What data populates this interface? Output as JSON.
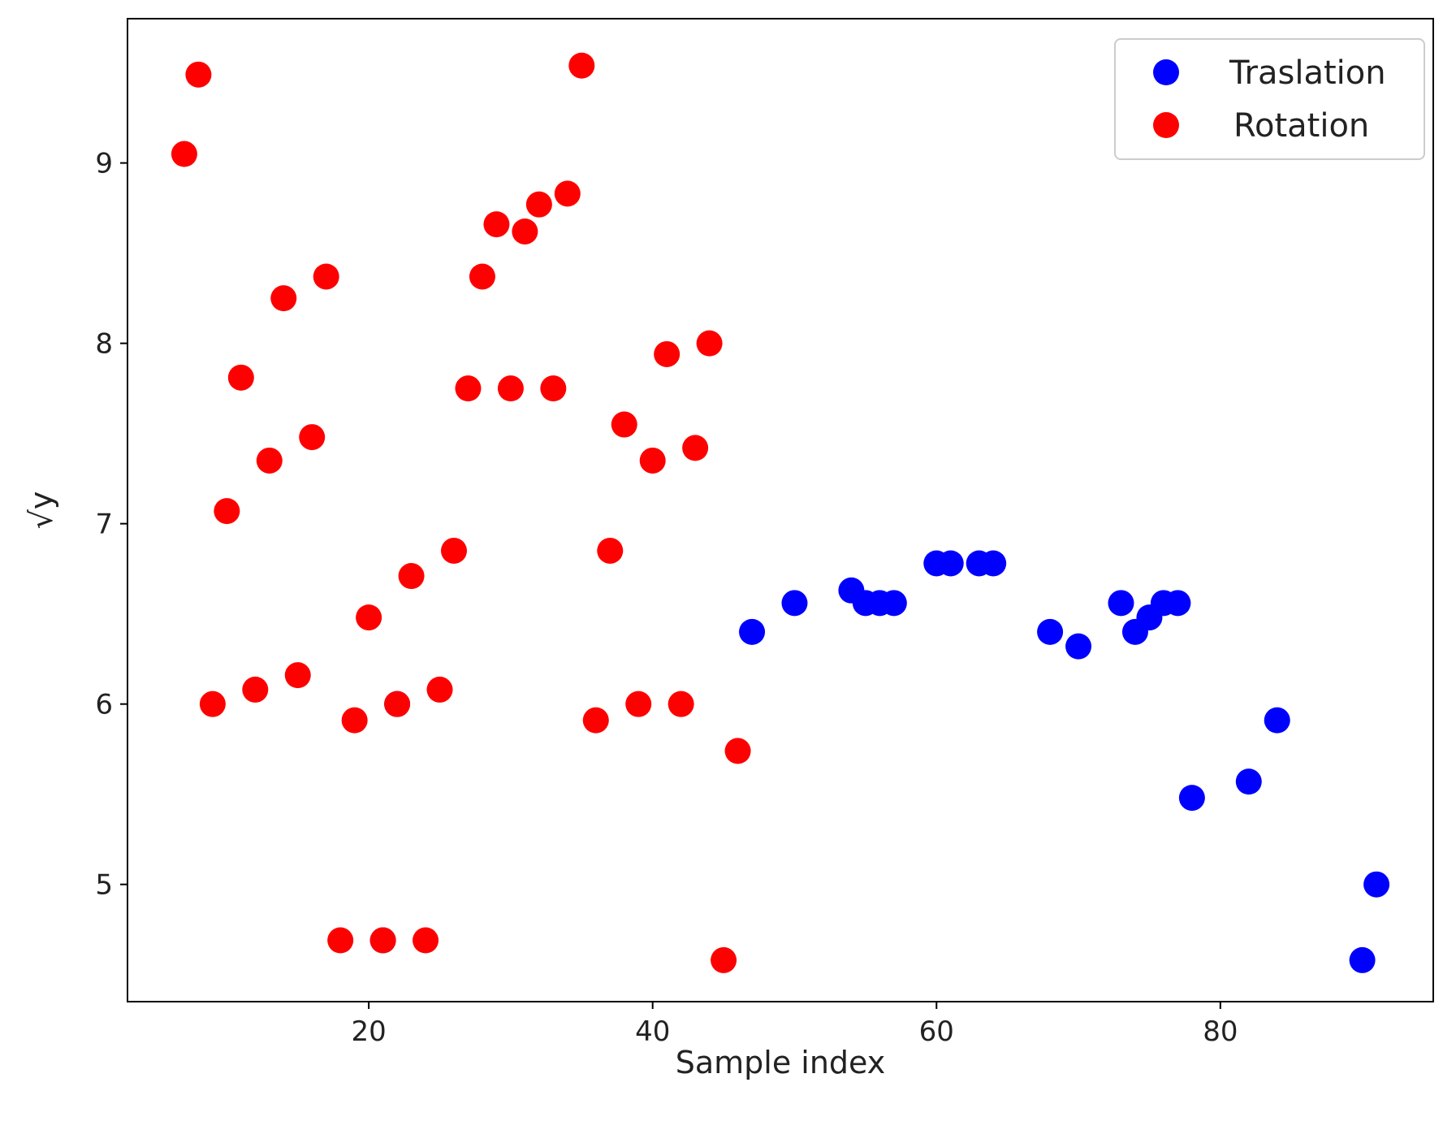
{
  "chart_data": {
    "type": "scatter",
    "xlabel": "Sample index",
    "ylabel": "√y",
    "xlim": [
      3,
      95
    ],
    "ylim": [
      4.35,
      9.8
    ],
    "xticks": [
      20,
      40,
      60,
      80
    ],
    "yticks": [
      5,
      6,
      7,
      8,
      9
    ],
    "grid": false,
    "legend_position": "top-right",
    "series": [
      {
        "name": "Traslation",
        "color": "#0000ff",
        "points": [
          [
            21,
            4.69
          ],
          [
            22,
            6.0
          ],
          [
            47,
            6.4
          ],
          [
            50,
            6.56
          ],
          [
            54,
            6.63
          ],
          [
            55,
            6.56
          ],
          [
            56,
            6.56
          ],
          [
            57,
            6.56
          ],
          [
            60,
            6.78
          ],
          [
            61,
            6.78
          ],
          [
            63,
            6.78
          ],
          [
            64,
            6.78
          ],
          [
            68,
            6.4
          ],
          [
            70,
            6.32
          ],
          [
            73,
            6.56
          ],
          [
            74,
            6.4
          ],
          [
            75,
            6.48
          ],
          [
            76,
            6.56
          ],
          [
            77,
            6.56
          ],
          [
            78,
            5.48
          ],
          [
            82,
            5.57
          ],
          [
            84,
            5.91
          ],
          [
            90,
            4.58
          ],
          [
            91,
            5.0
          ]
        ]
      },
      {
        "name": "Rotation",
        "color": "#ff0000",
        "points": [
          [
            7,
            9.05
          ],
          [
            8,
            9.49
          ],
          [
            9,
            6.0
          ],
          [
            10,
            7.07
          ],
          [
            11,
            7.81
          ],
          [
            12,
            6.08
          ],
          [
            13,
            7.35
          ],
          [
            14,
            8.25
          ],
          [
            15,
            6.16
          ],
          [
            16,
            7.48
          ],
          [
            17,
            8.37
          ],
          [
            18,
            4.69
          ],
          [
            19,
            5.91
          ],
          [
            20,
            6.48
          ],
          [
            21,
            4.69
          ],
          [
            22,
            6.0
          ],
          [
            23,
            6.71
          ],
          [
            24,
            4.69
          ],
          [
            25,
            6.08
          ],
          [
            26,
            6.85
          ],
          [
            27,
            7.75
          ],
          [
            28,
            8.37
          ],
          [
            29,
            8.66
          ],
          [
            30,
            7.75
          ],
          [
            31,
            8.62
          ],
          [
            32,
            8.77
          ],
          [
            33,
            7.75
          ],
          [
            34,
            8.83
          ],
          [
            35,
            9.54
          ],
          [
            36,
            5.91
          ],
          [
            37,
            6.85
          ],
          [
            38,
            7.55
          ],
          [
            39,
            6.0
          ],
          [
            40,
            7.35
          ],
          [
            41,
            7.94
          ],
          [
            42,
            6.0
          ],
          [
            43,
            7.42
          ],
          [
            44,
            8.0
          ],
          [
            45,
            4.58
          ],
          [
            46,
            5.74
          ]
        ]
      }
    ]
  }
}
